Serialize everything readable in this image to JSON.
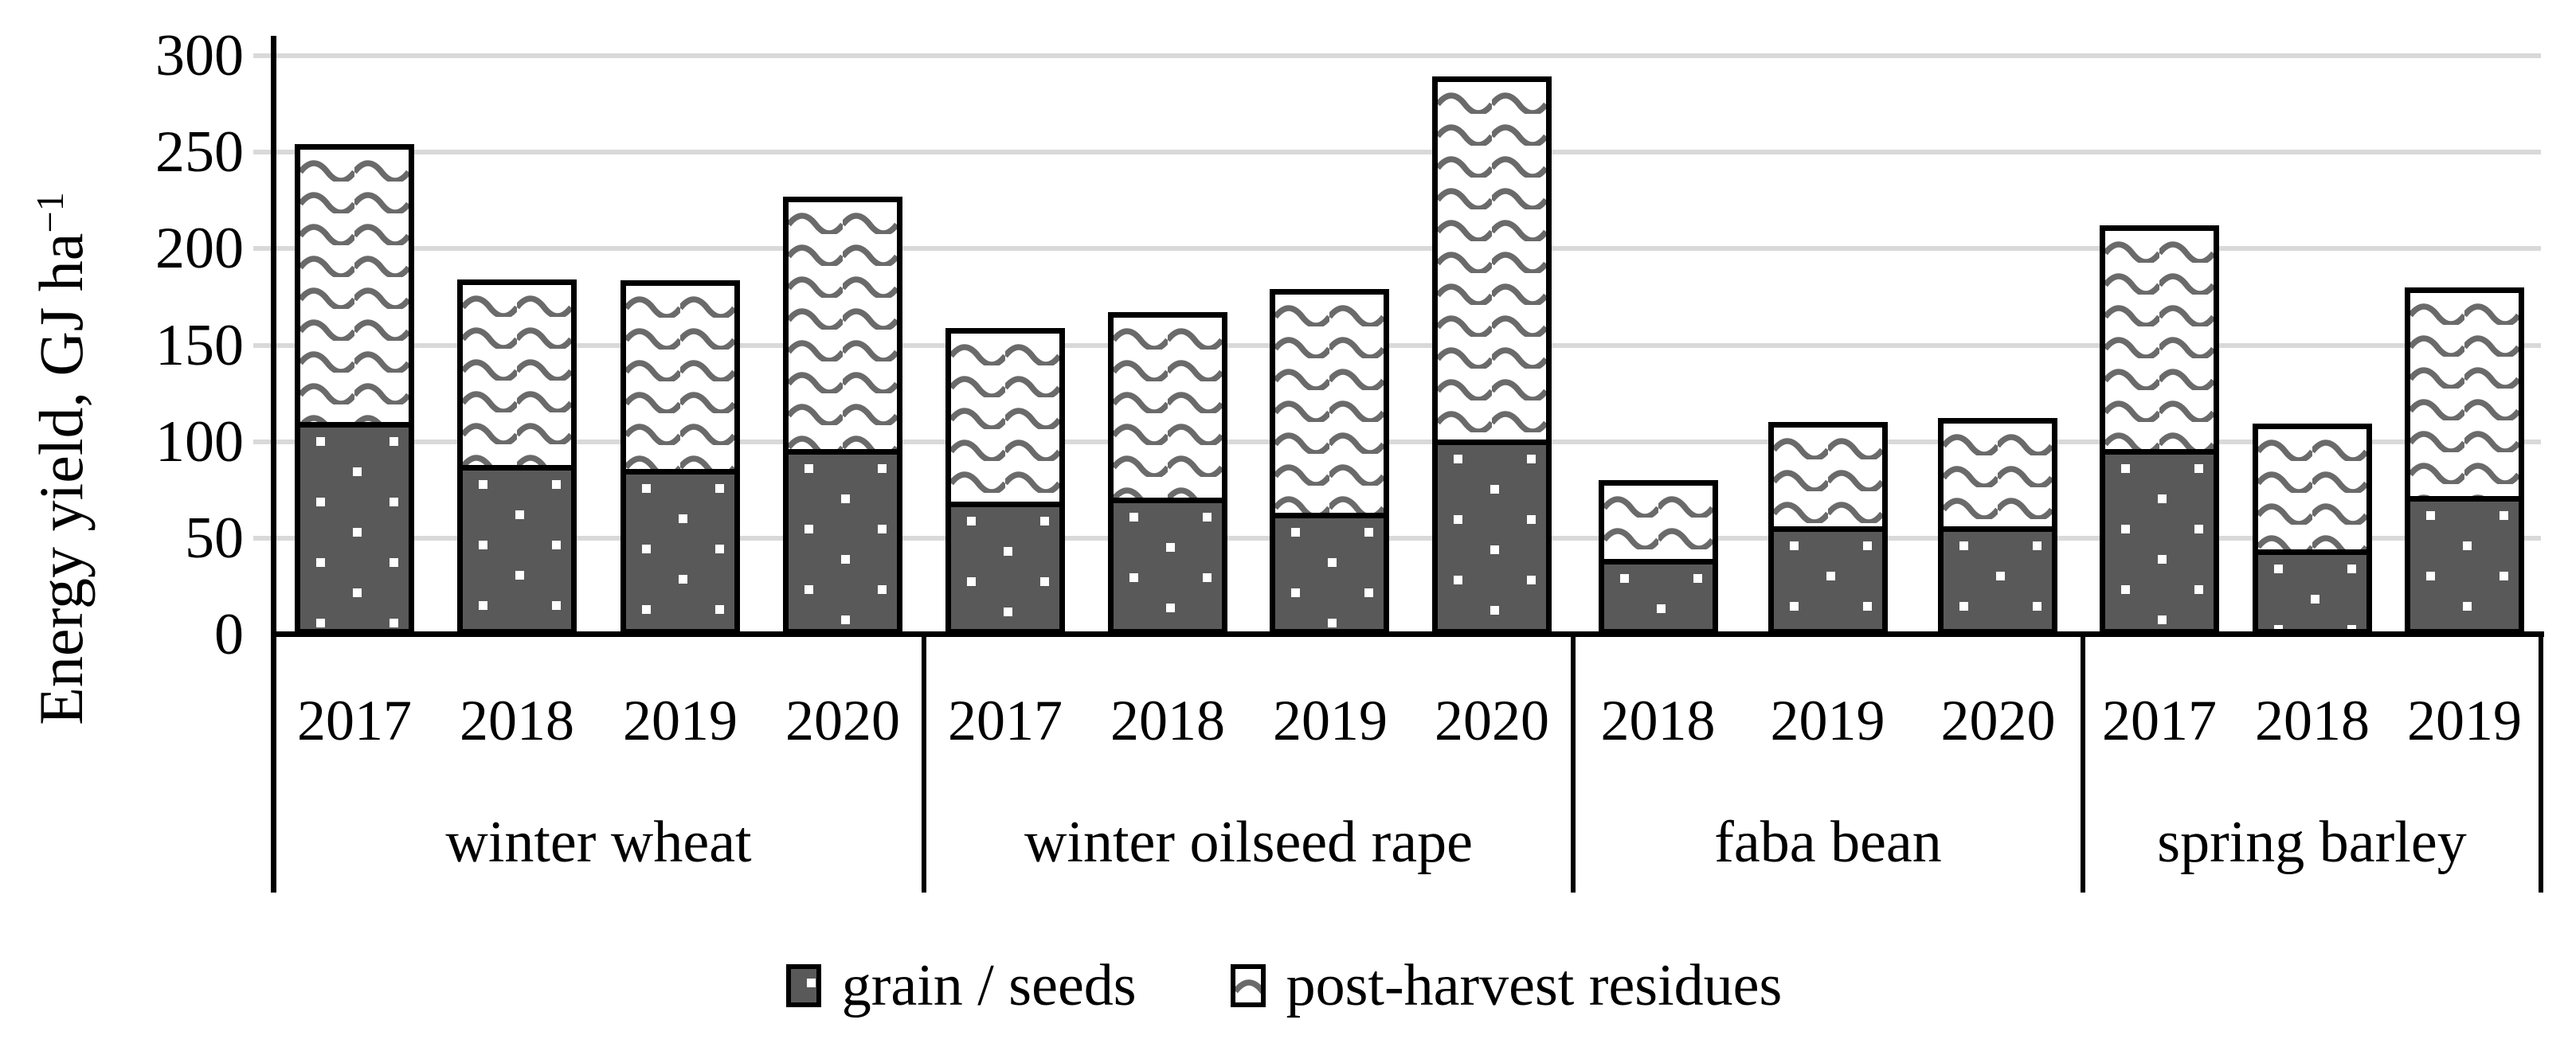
{
  "y_axis": {
    "label_main": "Energy yield, GJ ha",
    "label_sup": "−1",
    "ticks": [
      0,
      50,
      100,
      150,
      200,
      250,
      300
    ]
  },
  "legend": {
    "items": [
      {
        "label": "grain / seeds",
        "swatch": "dark-dotted-swatch"
      },
      {
        "label": "post-harvest residues",
        "swatch": "wave-pattern-swatch"
      }
    ]
  },
  "colors": {
    "grain_fill": "#595959",
    "wave_stroke": "#6a6a6a",
    "gridline": "#d9d9d9",
    "axis": "#000000",
    "background": "#ffffff"
  },
  "chart_data": {
    "type": "bar",
    "stacked": true,
    "title": "",
    "xlabel": "",
    "ylabel": "Energy yield, GJ ha⁻¹",
    "ylim": [
      0,
      300
    ],
    "grid": true,
    "legend_position": "bottom",
    "series_names": [
      "grain / seeds",
      "post-harvest residues"
    ],
    "groups": [
      {
        "label": "winter wheat",
        "years": [
          "2017",
          "2018",
          "2019",
          "2020"
        ],
        "grain_seeds": [
          110,
          88,
          86,
          96
        ],
        "post_harvest_residues": [
          144,
          96,
          98,
          131
        ],
        "totals": [
          254,
          184,
          184,
          227
        ]
      },
      {
        "label": "winter oilseed rape",
        "years": [
          "2017",
          "2018",
          "2019",
          "2020"
        ],
        "grain_seeds": [
          69,
          71,
          63,
          101
        ],
        "post_harvest_residues": [
          90,
          96,
          116,
          188
        ],
        "totals": [
          159,
          167,
          179,
          289
        ]
      },
      {
        "label": "faba bean",
        "years": [
          "2018",
          "2019",
          "2020"
        ],
        "grain_seeds": [
          39,
          56,
          56
        ],
        "post_harvest_residues": [
          41,
          54,
          56
        ],
        "totals": [
          80,
          110,
          112
        ]
      },
      {
        "label": "spring barley",
        "years": [
          "2017",
          "2018",
          "2019"
        ],
        "grain_seeds": [
          96,
          44,
          72
        ],
        "post_harvest_residues": [
          116,
          65,
          108
        ],
        "totals": [
          212,
          109,
          180
        ]
      }
    ]
  }
}
